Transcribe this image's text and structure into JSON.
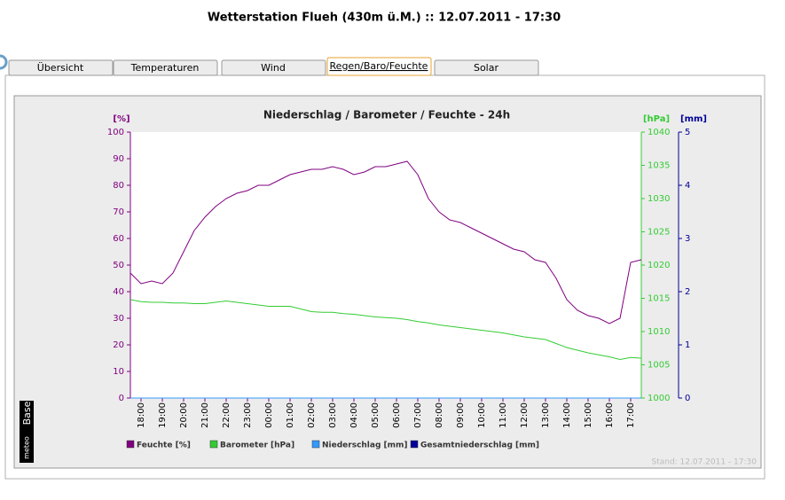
{
  "title": "Wetterstation Flueh (430m ü.M.) :: 12.07.2011 - 17:30",
  "tabs": [
    "Übersicht",
    "Temperaturen",
    "Wind",
    "Regen/Baro/Feuchte",
    "Solar"
  ],
  "active_tab": 3,
  "brand": [
    "meteo",
    "Base"
  ],
  "footer": "Stand: 12.07.2011 - 17:30",
  "chart_data": {
    "type": "line",
    "title": "Niederschlag / Barometer / Feuchte - 24h",
    "ylabel": "[%]",
    "y2label": "[hPa]",
    "y3label": "[mm]",
    "categories": [
      null,
      "18:00",
      null,
      "19:00",
      null,
      "20:00",
      null,
      "21:00",
      null,
      "22:00",
      null,
      "23:00",
      null,
      "00:00",
      null,
      "01:00",
      null,
      "02:00",
      null,
      "03:00",
      null,
      "04:00",
      null,
      "05:00",
      null,
      "06:00",
      null,
      "07:00",
      null,
      "08:00",
      null,
      "09:00",
      null,
      "10:00",
      null,
      "11:00",
      null,
      "12:00",
      null,
      "13:00",
      null,
      "14:00",
      null,
      "15:00",
      null,
      "16:00",
      null,
      "17:00",
      null
    ],
    "ylim": [
      0,
      100
    ],
    "yticks": [
      0,
      10,
      20,
      30,
      40,
      50,
      60,
      70,
      80,
      90,
      100
    ],
    "y2lim": [
      1000,
      1040
    ],
    "y2ticks": [
      1000,
      1005,
      1010,
      1015,
      1020,
      1025,
      1030,
      1035,
      1040
    ],
    "y3lim": [
      0,
      5
    ],
    "y3ticks": [
      0,
      1,
      2,
      3,
      4,
      5
    ],
    "series": [
      {
        "name": "Feuchte [%]",
        "color": "#800080",
        "axis": "y",
        "values": [
          47,
          43,
          44,
          43,
          47,
          55,
          63,
          68,
          72,
          75,
          77,
          78,
          80,
          80,
          82,
          84,
          85,
          86,
          86,
          87,
          86,
          84,
          85,
          87,
          87,
          88,
          89,
          84,
          75,
          70,
          67,
          66,
          64,
          62,
          60,
          58,
          56,
          55,
          52,
          51,
          45,
          37,
          33,
          31,
          30,
          28,
          30,
          51,
          52
        ]
      },
      {
        "name": "Barometer [hPa]",
        "color": "#33cc33",
        "axis": "y2",
        "values": [
          1014.8,
          1014.5,
          1014.4,
          1014.4,
          1014.3,
          1014.3,
          1014.2,
          1014.2,
          1014.4,
          1014.6,
          1014.4,
          1014.2,
          1014,
          1013.8,
          1013.8,
          1013.8,
          1013.4,
          1013,
          1012.9,
          1012.9,
          1012.7,
          1012.6,
          1012.4,
          1012.2,
          1012.1,
          1012,
          1011.8,
          1011.5,
          1011.3,
          1011,
          1010.8,
          1010.6,
          1010.4,
          1010.2,
          1010,
          1009.8,
          1009.5,
          1009.2,
          1009,
          1008.8,
          1008.2,
          1007.6,
          1007.2,
          1006.8,
          1006.5,
          1006.2,
          1005.8,
          1006.1,
          1006
        ]
      },
      {
        "name": "Niederschlag [mm]",
        "color": "#3399ff",
        "axis": "y3",
        "values": [
          0,
          0,
          0,
          0,
          0,
          0,
          0,
          0,
          0,
          0,
          0,
          0,
          0,
          0,
          0,
          0,
          0,
          0,
          0,
          0,
          0,
          0,
          0,
          0,
          0,
          0,
          0,
          0,
          0,
          0,
          0,
          0,
          0,
          0,
          0,
          0,
          0,
          0,
          0,
          0,
          0,
          0,
          0,
          0,
          0,
          0,
          0,
          0,
          0
        ]
      },
      {
        "name": "Gesamtniederschlag [mm]",
        "color": "#000099",
        "axis": "y3",
        "values": [
          0,
          0,
          0,
          0,
          0,
          0,
          0,
          0,
          0,
          0,
          0,
          0,
          0,
          0,
          0,
          0,
          0,
          0,
          0,
          0,
          0,
          0,
          0,
          0,
          0,
          0,
          0,
          0,
          0,
          0,
          0,
          0,
          0,
          0,
          0,
          0,
          0,
          0,
          0,
          0,
          0,
          0,
          0,
          0,
          0,
          0,
          0,
          0,
          0
        ]
      }
    ]
  }
}
